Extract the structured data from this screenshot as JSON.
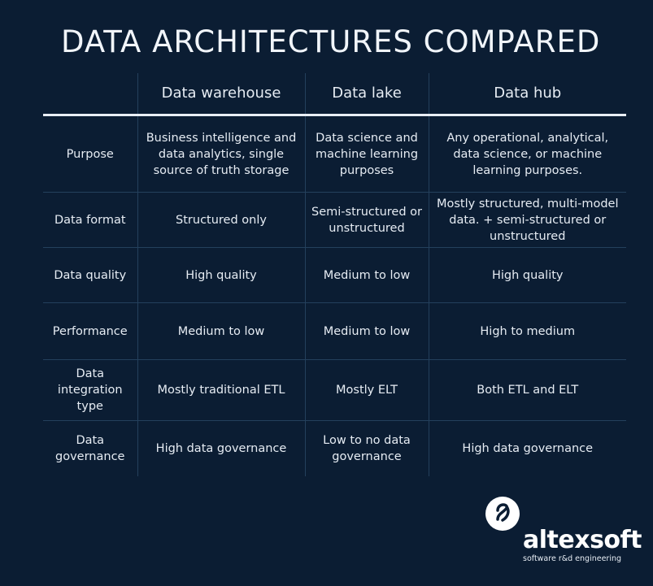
{
  "title": "DATA ARCHITECTURES COMPARED",
  "table": {
    "headers": [
      "",
      "Data warehouse",
      "Data lake",
      "Data hub"
    ],
    "rows": [
      [
        "Purpose",
        "Business intelligence and data analytics, single source of truth storage",
        "Data science and machine learning purposes",
        "Any operational, analytical, data science, or machine learning purposes."
      ],
      [
        "Data format",
        "Structured only",
        "Semi-structured or unstructured",
        "Mostly structured, multi-model data. + semi-structured or unstructured"
      ],
      [
        "Data quality",
        "High quality",
        "Medium to low",
        "High quality"
      ],
      [
        "Performance",
        "Medium to low",
        "Medium to low",
        "High to medium"
      ],
      [
        "Data integration type",
        "Mostly traditional ETL",
        "Mostly ELT",
        "Both ETL and ELT"
      ],
      [
        "Data governance",
        "High data governance",
        "Low to no data governance",
        "High data governance"
      ]
    ]
  },
  "logo": {
    "name": "altexsoft",
    "tagline": "software r&d engineering"
  },
  "colors": {
    "background": "#0b1d33",
    "text": "#e9eef5",
    "grid": "#24405c"
  },
  "icons": [
    "altexsoft-logo-icon"
  ]
}
